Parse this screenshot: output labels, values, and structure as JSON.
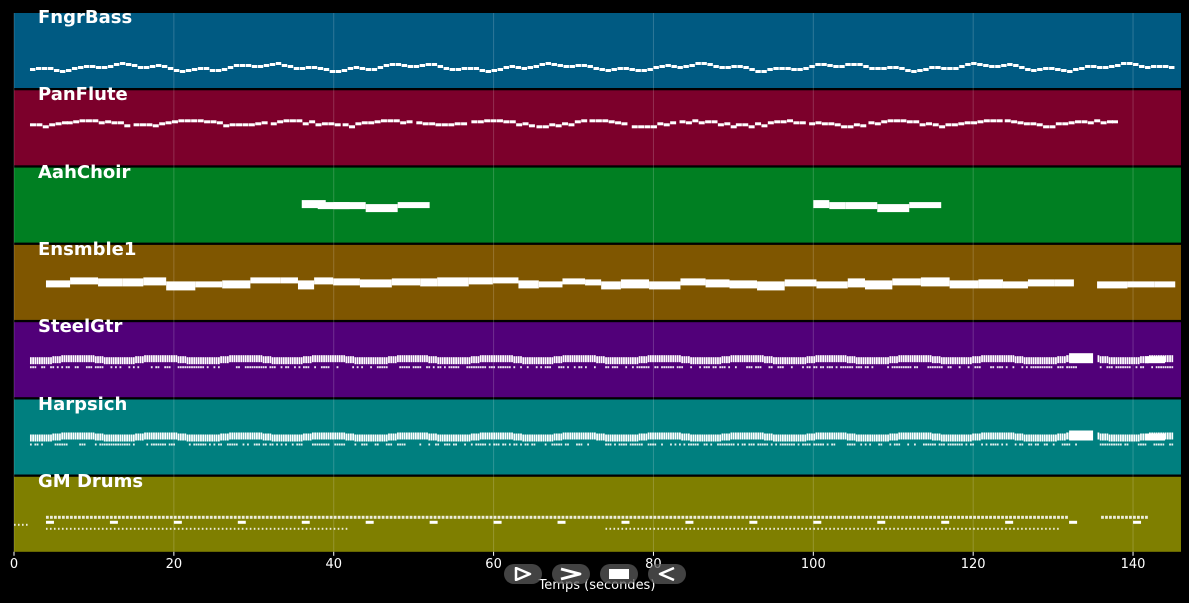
{
  "xlabel": "Temps (secondes)",
  "x_ticks": [
    "0",
    "20",
    "40",
    "60",
    "80",
    "100",
    "120",
    "140"
  ],
  "x_range": [
    0,
    146
  ],
  "tracks": [
    {
      "name": "FngrBass",
      "color": "#005a82",
      "pattern": "bass"
    },
    {
      "name": "PanFlute",
      "color": "#7c002b",
      "pattern": "flute"
    },
    {
      "name": "AahChoir",
      "color": "#007f22",
      "pattern": "choir"
    },
    {
      "name": "Ensmble1",
      "color": "#7f5600",
      "pattern": "ensemble"
    },
    {
      "name": "SteelGtr",
      "color": "#510079",
      "pattern": "guitar"
    },
    {
      "name": "Harpsich",
      "color": "#007f7f",
      "pattern": "guitar"
    },
    {
      "name": "GM Drums",
      "color": "#7f7f00",
      "pattern": "drums"
    }
  ],
  "controls": [
    {
      "name": "play-button",
      "icon": "play-icon"
    },
    {
      "name": "fast-forward-button",
      "icon": "fast-forward-icon"
    },
    {
      "name": "stop-button",
      "icon": "stop-icon"
    },
    {
      "name": "rewind-button",
      "icon": "rewind-icon"
    }
  ]
}
